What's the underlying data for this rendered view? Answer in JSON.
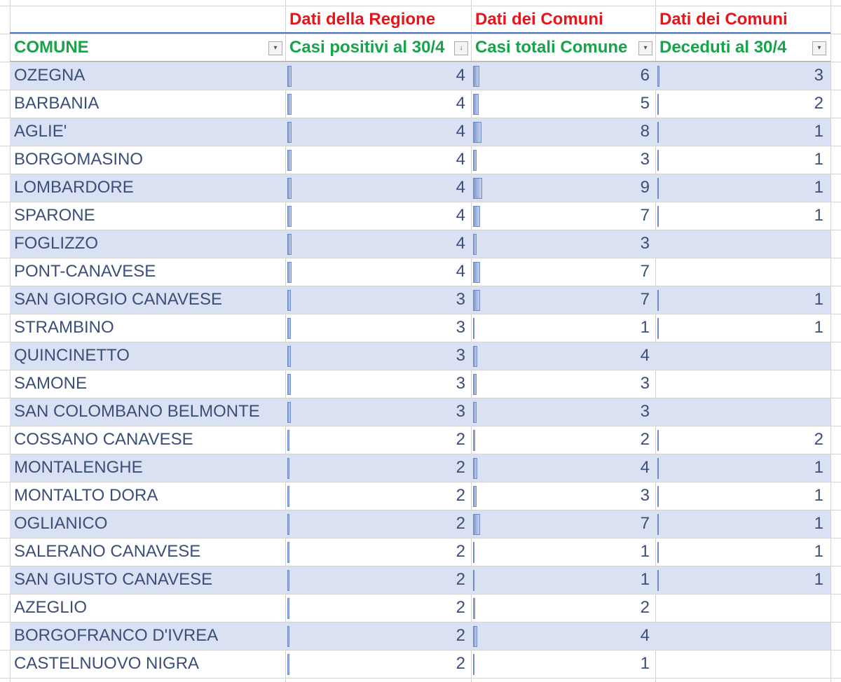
{
  "group_headers": [
    "",
    "Dati della Regione",
    "Dati dei Comuni",
    "Dati dei Comuni"
  ],
  "columns": [
    "COMUNE",
    "Casi positivi al 30/4",
    "Casi totali Comune",
    "Deceduti al 30/4"
  ],
  "filter_icons": [
    "filter-dropdown-icon",
    "sort-descending-icon",
    "filter-dropdown-icon",
    "filter-dropdown-icon"
  ],
  "colors": {
    "group_header": "#e8141b",
    "column_header": "#16a34a",
    "band": "#d9e1f2",
    "text": "#3b4f7a",
    "data_bar": "#7f9ad0"
  },
  "rows": [
    [
      "OZEGNA",
      "4",
      "6",
      "3"
    ],
    [
      "BARBANIA",
      "4",
      "5",
      "2"
    ],
    [
      "AGLIE'",
      "4",
      "8",
      "1"
    ],
    [
      "BORGOMASINO",
      "4",
      "3",
      "1"
    ],
    [
      "LOMBARDORE",
      "4",
      "9",
      "1"
    ],
    [
      "SPARONE",
      "4",
      "7",
      "1"
    ],
    [
      "FOGLIZZO",
      "4",
      "3",
      ""
    ],
    [
      "PONT-CANAVESE",
      "4",
      "7",
      ""
    ],
    [
      "SAN GIORGIO CANAVESE",
      "3",
      "7",
      "1"
    ],
    [
      "STRAMBINO",
      "3",
      "1",
      "1"
    ],
    [
      "QUINCINETTO",
      "3",
      "4",
      ""
    ],
    [
      "SAMONE",
      "3",
      "3",
      ""
    ],
    [
      "SAN COLOMBANO BELMONTE",
      "3",
      "3",
      ""
    ],
    [
      "COSSANO CANAVESE",
      "2",
      "2",
      "2"
    ],
    [
      "MONTALENGHE",
      "2",
      "4",
      "1"
    ],
    [
      "MONTALTO DORA",
      "2",
      "3",
      "1"
    ],
    [
      "OGLIANICO",
      "2",
      "7",
      "1"
    ],
    [
      "SALERANO CANAVESE",
      "2",
      "1",
      "1"
    ],
    [
      "SAN GIUSTO CANAVESE",
      "2",
      "1",
      "1"
    ],
    [
      "AZEGLIO",
      "2",
      "2",
      ""
    ],
    [
      "BORGOFRANCO D'IVREA",
      "2",
      "4",
      ""
    ],
    [
      "CASTELNUOVO NIGRA",
      "2",
      "1",
      ""
    ]
  ]
}
